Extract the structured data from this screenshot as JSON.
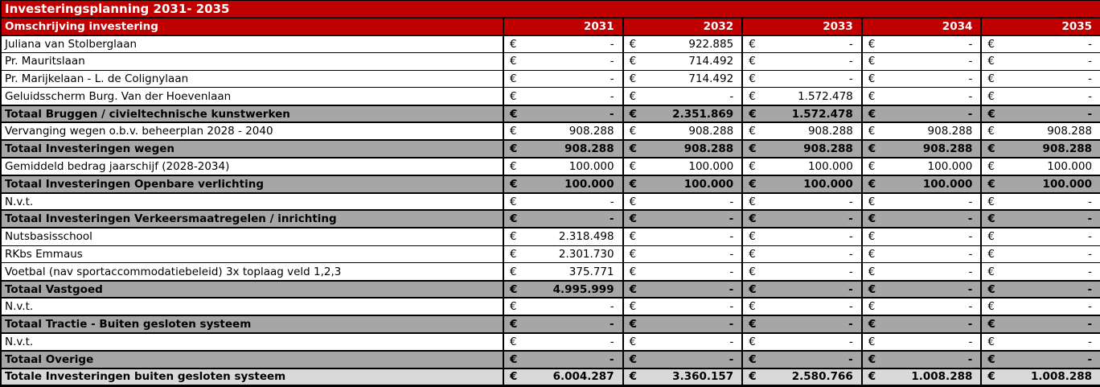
{
  "title": "Investeringsplanning 2031- 2035",
  "currency_symbol": "€",
  "colors": {
    "header_red": "#C00000",
    "total_row_gray": "#A6A6A6",
    "grand_total_gray": "#D9D9D9",
    "border": "#000000",
    "header_text": "#FFFFFF"
  },
  "table": {
    "description_header": "Omschrijving investering",
    "years": [
      "2031",
      "2032",
      "2033",
      "2034",
      "2035"
    ],
    "rows": [
      {
        "label": "Juliana van Stolberglaan",
        "type": "item",
        "values": [
          "-",
          "922.885",
          "-",
          "-",
          "-"
        ]
      },
      {
        "label": "Pr. Mauritslaan",
        "type": "item",
        "values": [
          "-",
          "714.492",
          "-",
          "-",
          "-"
        ]
      },
      {
        "label": "Pr. Marijkelaan - L. de Colignylaan",
        "type": "item",
        "values": [
          "-",
          "714.492",
          "-",
          "-",
          "-"
        ]
      },
      {
        "label": "Geluidsscherm Burg. Van der Hoevenlaan",
        "type": "item",
        "values": [
          "-",
          "-",
          "1.572.478",
          "-",
          "-"
        ]
      },
      {
        "label": "Totaal Bruggen / civieltechnische kunstwerken",
        "type": "total",
        "values": [
          "-",
          "2.351.869",
          "1.572.478",
          "-",
          "-"
        ]
      },
      {
        "label": "Vervanging wegen o.b.v. beheerplan 2028 - 2040",
        "type": "item",
        "values": [
          "908.288",
          "908.288",
          "908.288",
          "908.288",
          "908.288"
        ]
      },
      {
        "label": "Totaal Investeringen wegen",
        "type": "total",
        "values": [
          "908.288",
          "908.288",
          "908.288",
          "908.288",
          "908.288"
        ]
      },
      {
        "label": "Gemiddeld bedrag jaarschijf (2028-2034)",
        "type": "item",
        "values": [
          "100.000",
          "100.000",
          "100.000",
          "100.000",
          "100.000"
        ]
      },
      {
        "label": "Totaal Investeringen Openbare verlichting",
        "type": "total",
        "values": [
          "100.000",
          "100.000",
          "100.000",
          "100.000",
          "100.000"
        ]
      },
      {
        "label": "N.v.t.",
        "type": "item",
        "values": [
          "-",
          "-",
          "-",
          "-",
          "-"
        ]
      },
      {
        "label": "Totaal Investeringen Verkeersmaatregelen / inrichting",
        "type": "total",
        "values": [
          "-",
          "-",
          "-",
          "-",
          "-"
        ]
      },
      {
        "label": "Nutsbasisschool",
        "type": "item",
        "values": [
          "2.318.498",
          "-",
          "-",
          "-",
          "-"
        ]
      },
      {
        "label": "RKbs Emmaus",
        "type": "item",
        "values": [
          "2.301.730",
          "-",
          "-",
          "-",
          "-"
        ]
      },
      {
        "label": "Voetbal (nav sportaccommodatiebeleid) 3x toplaag veld 1,2,3",
        "type": "item",
        "values": [
          "375.771",
          "-",
          "-",
          "-",
          "-"
        ]
      },
      {
        "label": "Totaal Vastgoed",
        "type": "total",
        "values": [
          "4.995.999",
          "-",
          "-",
          "-",
          "-"
        ]
      },
      {
        "label": "N.v.t.",
        "type": "item",
        "values": [
          "-",
          "-",
          "-",
          "-",
          "-"
        ]
      },
      {
        "label": "Totaal Tractie - Buiten gesloten systeem",
        "type": "total",
        "values": [
          "-",
          "-",
          "-",
          "-",
          "-"
        ]
      },
      {
        "label": "N.v.t.",
        "type": "item",
        "values": [
          "-",
          "-",
          "-",
          "-",
          "-"
        ]
      },
      {
        "label": "Totaal Overige",
        "type": "total",
        "values": [
          "-",
          "-",
          "-",
          "-",
          "-"
        ]
      },
      {
        "label": "Totale Investeringen buiten gesloten systeem",
        "type": "grand",
        "values": [
          "6.004.287",
          "3.360.157",
          "2.580.766",
          "1.008.288",
          "1.008.288"
        ]
      }
    ]
  }
}
